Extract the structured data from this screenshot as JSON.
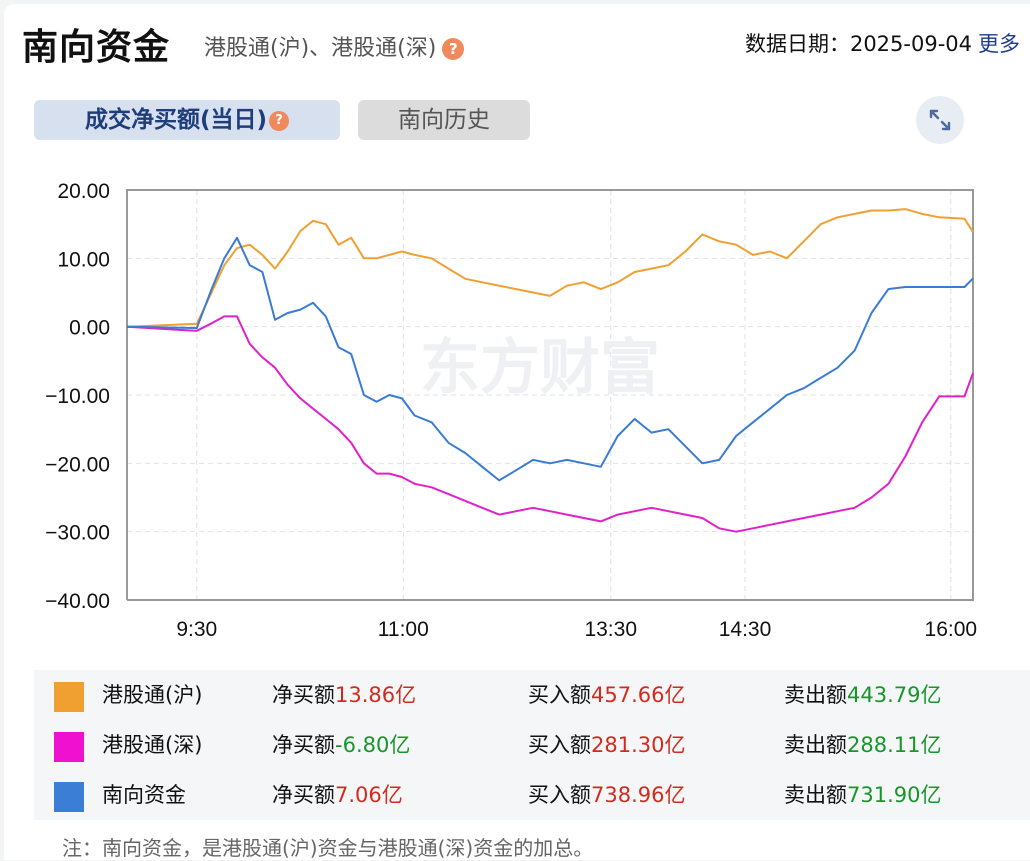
{
  "header": {
    "title": "南向资金",
    "subtitle": "港股通(沪)、港股通(深)",
    "help_icon": "?",
    "date_label": "数据日期：2025-09-04",
    "more_link": "更多"
  },
  "tabs": [
    {
      "label": "成交净买额(当日)",
      "active": true,
      "help_icon": "?"
    },
    {
      "label": "南向历史",
      "active": false
    }
  ],
  "expand_icon": "expand-arrows-icon",
  "watermark": "东方财富",
  "chart_data": {
    "type": "line",
    "title": "成交净买额(当日)",
    "xlabel": "",
    "ylabel": "",
    "ylim": [
      -40,
      20
    ],
    "y_ticks": [
      "20.00",
      "10.00",
      "0.00",
      "−10.00",
      "−20.00",
      "−30.00",
      "−40.00"
    ],
    "y_tick_values": [
      20,
      10,
      0,
      -10,
      -20,
      -30,
      -40
    ],
    "x_ticks": [
      "9:30",
      "11:00",
      "13:30",
      "14:30",
      "16:00"
    ],
    "x_tick_positions": [
      0.0825,
      0.3266,
      0.5718,
      0.7305,
      0.9738
    ],
    "grid": true,
    "legend_position": "bottom",
    "x": [
      0.0,
      0.08,
      0.0825,
      0.1,
      0.115,
      0.13,
      0.145,
      0.16,
      0.175,
      0.19,
      0.205,
      0.22,
      0.235,
      0.25,
      0.265,
      0.28,
      0.295,
      0.31,
      0.325,
      0.34,
      0.36,
      0.38,
      0.4,
      0.42,
      0.44,
      0.46,
      0.48,
      0.5,
      0.52,
      0.54,
      0.56,
      0.58,
      0.6,
      0.62,
      0.64,
      0.66,
      0.68,
      0.7,
      0.72,
      0.74,
      0.76,
      0.78,
      0.8,
      0.82,
      0.84,
      0.86,
      0.88,
      0.9,
      0.92,
      0.94,
      0.96,
      0.99,
      1.0
    ],
    "series": [
      {
        "name": "港股通(沪)",
        "color": "#f0a030",
        "values": [
          0.0,
          0.4,
          0.4,
          5.0,
          9.0,
          11.5,
          12.0,
          10.5,
          8.5,
          11.0,
          14.0,
          15.5,
          15.0,
          12.0,
          13.0,
          10.0,
          10.0,
          10.5,
          11.0,
          10.5,
          10.0,
          8.5,
          7.0,
          6.5,
          6.0,
          5.5,
          5.0,
          4.5,
          6.0,
          6.5,
          5.5,
          6.5,
          8.0,
          8.5,
          9.0,
          11.0,
          13.5,
          12.5,
          12.0,
          10.5,
          11.0,
          10.0,
          12.5,
          15.0,
          16.0,
          16.5,
          17.0,
          17.0,
          17.2,
          16.5,
          16.0,
          15.8,
          13.86
        ]
      },
      {
        "name": "港股通(深)",
        "color": "#e020c8",
        "values": [
          0.0,
          -0.6,
          -0.6,
          0.5,
          1.5,
          1.5,
          -2.5,
          -4.5,
          -6.0,
          -8.5,
          -10.5,
          -12.0,
          -13.5,
          -15.0,
          -17.0,
          -20.0,
          -21.5,
          -21.5,
          -22.0,
          -23.0,
          -23.5,
          -24.5,
          -25.5,
          -26.5,
          -27.5,
          -27.0,
          -26.5,
          -27.0,
          -27.5,
          -28.0,
          -28.5,
          -27.5,
          -27.0,
          -26.5,
          -27.0,
          -27.5,
          -28.0,
          -29.5,
          -30.0,
          -29.5,
          -29.0,
          -28.5,
          -28.0,
          -27.5,
          -27.0,
          -26.5,
          -25.0,
          -23.0,
          -19.0,
          -14.0,
          -10.2,
          -10.2,
          -6.8
        ]
      },
      {
        "name": "南向资金",
        "color": "#3a7bd5",
        "values": [
          0.0,
          -0.2,
          -0.2,
          5.5,
          10.0,
          13.0,
          9.0,
          8.0,
          1.0,
          2.0,
          2.5,
          3.5,
          1.5,
          -3.0,
          -4.0,
          -10.0,
          -11.0,
          -10.0,
          -10.5,
          -13.0,
          -14.0,
          -17.0,
          -18.5,
          -20.5,
          -22.5,
          -21.0,
          -19.5,
          -20.0,
          -19.5,
          -20.0,
          -20.5,
          -16.0,
          -13.5,
          -15.5,
          -15.0,
          -17.5,
          -20.0,
          -19.5,
          -16.0,
          -14.0,
          -12.0,
          -10.0,
          -9.0,
          -7.5,
          -6.0,
          -3.5,
          2.0,
          5.5,
          5.8,
          5.8,
          5.8,
          5.8,
          7.06
        ]
      }
    ]
  },
  "legend": [
    {
      "name": "港股通(沪)",
      "color": "#f0a030",
      "net_label": "净买额",
      "net_value": "13.86亿",
      "net_sign": "red",
      "buy_label": "买入额",
      "buy_value": "457.66亿",
      "sell_label": "卖出额",
      "sell_value": "443.79亿"
    },
    {
      "name": "港股通(深)",
      "color": "#f010d0",
      "net_label": "净买额",
      "net_value": "-6.80亿",
      "net_sign": "green",
      "buy_label": "买入额",
      "buy_value": "281.30亿",
      "sell_label": "卖出额",
      "sell_value": "288.11亿"
    },
    {
      "name": "南向资金",
      "color": "#3a7fd5",
      "net_label": "净买额",
      "net_value": "7.06亿",
      "net_sign": "red",
      "buy_label": "买入额",
      "buy_value": "738.96亿",
      "sell_label": "卖出额",
      "sell_value": "731.90亿"
    }
  ],
  "note": "注：南向资金，是港股通(沪)资金与港股通(深)资金的加总。"
}
